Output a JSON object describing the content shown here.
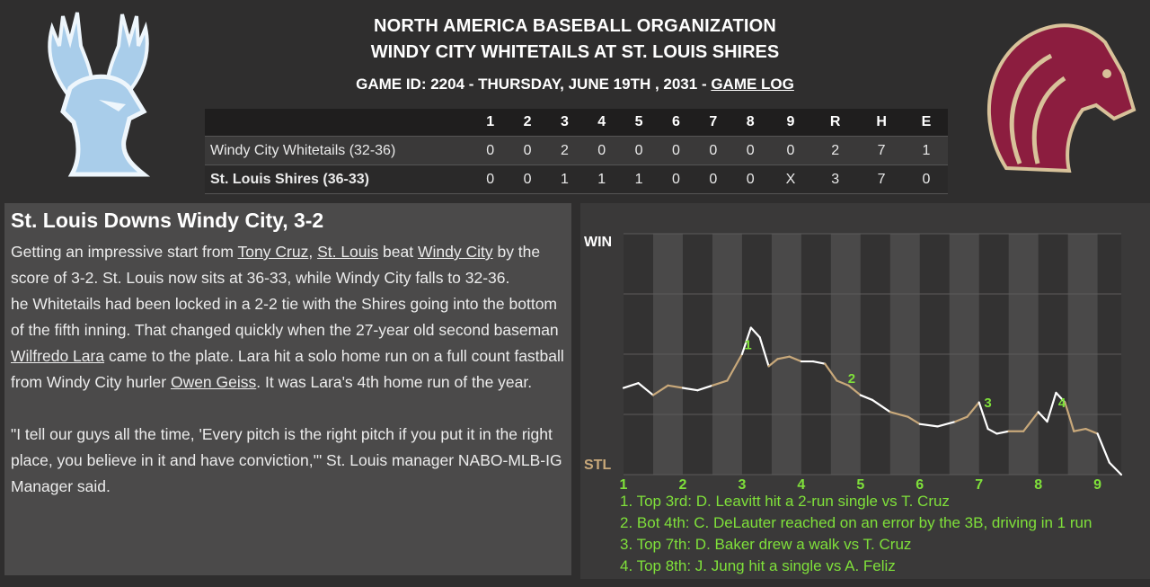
{
  "header": {
    "organization": "NORTH AMERICA BASEBALL ORGANIZATION",
    "matchup": "WINDY CITY WHITETAILS AT ST. LOUIS SHIRES",
    "game_info": "GAME ID: 2204 - THURSDAY, JUNE 19TH , 2031 - ",
    "game_log_link": "GAME LOG"
  },
  "colors": {
    "win_prob_line": "#ffffff",
    "home_segment": "#c8a87a",
    "accent_green": "#7fe03a",
    "away_logo": "#a9cdea",
    "home_logo": "#8c1d3f"
  },
  "logos": {
    "away": "deer-logo",
    "home": "horse-logo"
  },
  "boxscore": {
    "headers": [
      "1",
      "2",
      "3",
      "4",
      "5",
      "6",
      "7",
      "8",
      "9",
      "R",
      "H",
      "E"
    ],
    "rows": [
      {
        "team": "Windy City Whitetails (32-36)",
        "cells": [
          "0",
          "0",
          "2",
          "0",
          "0",
          "0",
          "0",
          "0",
          "0",
          "2",
          "7",
          "1"
        ]
      },
      {
        "team": "St. Louis Shires (36-33)",
        "cells": [
          "0",
          "0",
          "1",
          "1",
          "1",
          "0",
          "0",
          "0",
          "X",
          "3",
          "7",
          "0"
        ]
      }
    ]
  },
  "story": {
    "headline": "St. Louis Downs Windy City, 3-2",
    "p1_a": "Getting an impressive start from ",
    "p1_link1": "Tony Cruz",
    "p1_b": ", ",
    "p1_link2": "St. Louis",
    "p1_c": " beat ",
    "p1_link3": "Windy City",
    "p1_d": " by the score of 3-2. St. Louis now sits at 36-33, while Windy City falls to 32-36.",
    "p2_a": "he Whitetails had been locked in a 2-2 tie with the Shires going into the bottom of the fifth inning. That changed quickly when the 27-year old second baseman ",
    "p2_link1": "Wilfredo Lara",
    "p2_b": " came to the plate. Lara hit a solo home run on a full count fastball from Windy City hurler ",
    "p2_link2": "Owen Geiss",
    "p2_c": ". It was Lara's 4th home run of the year.",
    "p3": "\"I tell our guys all the time, 'Every pitch is the right pitch if you put it in the right place, you believe in it and have conviction,'\" St. Louis manager NABO-MLB-IG Manager said."
  },
  "win_chart": {
    "top_label": "WIN",
    "bottom_label": "STL",
    "inning_labels": [
      "1",
      "2",
      "3",
      "4",
      "5",
      "6",
      "7",
      "8",
      "9"
    ],
    "markers": [
      "1",
      "2",
      "3",
      "4"
    ],
    "notes": [
      "1. Top 3rd: D. Leavitt hit a 2-run single vs T. Cruz",
      "2. Bot 4th: C. DeLauter reached on an error by the 3B, driving in 1 run",
      "3. Top 7th: D. Baker drew a walk vs T. Cruz",
      "4. Top 8th: J. Jung hit a single vs A. Feliz"
    ]
  },
  "chart_data": {
    "type": "line",
    "x_unit": "inning",
    "x": [
      1.0,
      1.25,
      1.5,
      1.75,
      2.0,
      2.25,
      2.5,
      2.75,
      3.0,
      3.15,
      3.3,
      3.45,
      3.6,
      3.8,
      4.0,
      4.2,
      4.4,
      4.6,
      4.8,
      5.0,
      5.2,
      5.5,
      5.8,
      6.0,
      6.3,
      6.6,
      6.8,
      7.0,
      7.15,
      7.3,
      7.5,
      7.75,
      8.0,
      8.15,
      8.3,
      8.45,
      8.6,
      8.8,
      9.0,
      9.2,
      9.4
    ],
    "y": [
      0.36,
      0.38,
      0.33,
      0.37,
      0.36,
      0.35,
      0.37,
      0.39,
      0.5,
      0.61,
      0.57,
      0.45,
      0.48,
      0.49,
      0.47,
      0.47,
      0.46,
      0.39,
      0.37,
      0.33,
      0.31,
      0.26,
      0.24,
      0.21,
      0.2,
      0.22,
      0.24,
      0.3,
      0.19,
      0.17,
      0.18,
      0.18,
      0.26,
      0.22,
      0.34,
      0.3,
      0.18,
      0.19,
      0.17,
      0.05,
      0.0
    ],
    "ylim": [
      0,
      1
    ]
  }
}
